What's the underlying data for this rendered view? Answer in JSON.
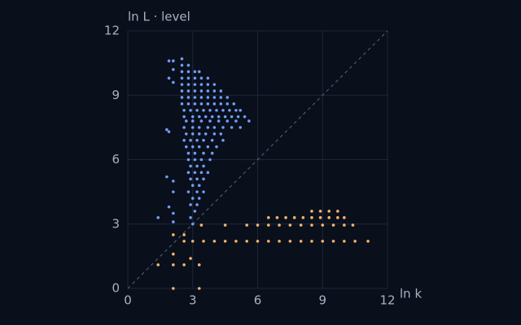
{
  "chart_data": {
    "type": "scatter",
    "x_label": "ln k",
    "y_label": "ln L · level",
    "xlim": [
      0,
      12
    ],
    "ylim": [
      0,
      12
    ],
    "xticks": [
      0,
      3,
      6,
      9,
      12
    ],
    "yticks": [
      0,
      3,
      6,
      9,
      12
    ],
    "grid": true,
    "series": [
      {
        "color": "#6f9cf4",
        "x": [
          2.5,
          2.5,
          2.8,
          2.5,
          2.8,
          3.1,
          3.3,
          2.5,
          2.8,
          3.1,
          3.4,
          3.7,
          2.5,
          2.8,
          3.1,
          3.4,
          3.7,
          4.0,
          2.5,
          2.8,
          3.1,
          3.4,
          3.7,
          4.0,
          4.3,
          2.5,
          2.8,
          3.1,
          3.4,
          3.7,
          4.0,
          4.3,
          4.6,
          2.5,
          2.8,
          3.1,
          3.4,
          3.7,
          4.0,
          4.3,
          4.6,
          4.9,
          2.6,
          2.9,
          3.2,
          3.5,
          3.8,
          4.1,
          4.4,
          4.7,
          5.0,
          5.2,
          2.6,
          3.0,
          3.3,
          3.6,
          3.9,
          4.2,
          4.5,
          4.8,
          5.1,
          5.4,
          2.7,
          3.0,
          3.4,
          3.8,
          4.2,
          4.6,
          5.0,
          5.6,
          2.6,
          3.0,
          3.3,
          3.7,
          4.0,
          4.4,
          4.8,
          5.2,
          2.7,
          3.0,
          3.3,
          3.6,
          4.0,
          4.3,
          2.6,
          2.9,
          3.2,
          3.5,
          3.9,
          4.4,
          2.7,
          3.0,
          3.3,
          3.7,
          4.1,
          2.8,
          3.1,
          3.5,
          3.9,
          2.8,
          3.1,
          3.4,
          3.8,
          2.9,
          3.2,
          3.5,
          2.8,
          3.1,
          3.4,
          3.7,
          2.9,
          3.2,
          3.5,
          3.0,
          3.3,
          2.8,
          3.2,
          3.5,
          3.0,
          3.3,
          2.9,
          3.2,
          3.1,
          2.9,
          3.0,
          2.1,
          2.1,
          2.1,
          1.9,
          1.9,
          1.8,
          1.9,
          1.8,
          2.1,
          2.1,
          1.4,
          2.1,
          1.9,
          2.1
        ],
        "values": [
          10.7,
          10.4,
          10.4,
          10.1,
          10.1,
          10.1,
          10.1,
          9.8,
          9.8,
          9.8,
          9.8,
          9.8,
          9.5,
          9.5,
          9.5,
          9.5,
          9.5,
          9.5,
          9.2,
          9.2,
          9.2,
          9.2,
          9.2,
          9.2,
          9.2,
          8.9,
          8.9,
          8.9,
          8.9,
          8.9,
          8.9,
          8.9,
          8.9,
          8.6,
          8.6,
          8.6,
          8.6,
          8.6,
          8.6,
          8.6,
          8.6,
          8.6,
          8.3,
          8.3,
          8.3,
          8.3,
          8.3,
          8.3,
          8.3,
          8.3,
          8.3,
          8.3,
          8.0,
          8.0,
          8.0,
          8.0,
          8.0,
          8.0,
          8.0,
          8.0,
          8.0,
          8.0,
          7.8,
          7.8,
          7.8,
          7.8,
          7.8,
          7.8,
          7.8,
          7.8,
          7.5,
          7.5,
          7.5,
          7.5,
          7.5,
          7.5,
          7.5,
          7.5,
          7.2,
          7.2,
          7.2,
          7.2,
          7.2,
          7.2,
          6.9,
          6.9,
          6.9,
          6.9,
          6.9,
          6.9,
          6.6,
          6.6,
          6.6,
          6.6,
          6.6,
          6.3,
          6.3,
          6.3,
          6.3,
          6.0,
          6.0,
          6.0,
          6.0,
          5.7,
          5.7,
          5.7,
          5.4,
          5.4,
          5.4,
          5.4,
          5.1,
          5.1,
          5.1,
          4.8,
          4.8,
          4.5,
          4.5,
          4.5,
          4.2,
          4.2,
          3.9,
          3.9,
          3.6,
          3.3,
          3.0,
          10.6,
          10.2,
          9.6,
          10.6,
          9.8,
          7.4,
          7.3,
          5.2,
          5.0,
          4.5,
          3.3,
          3.5,
          3.8,
          3.1
        ]
      },
      {
        "color": "#f5b46b",
        "x": [
          2.6,
          3.0,
          3.5,
          4.0,
          4.5,
          5.0,
          5.5,
          6.0,
          6.5,
          7.0,
          7.5,
          8.0,
          8.5,
          9.0,
          9.5,
          10.0,
          10.5,
          11.1,
          3.4,
          4.5,
          5.5,
          6.0,
          6.5,
          7.0,
          7.5,
          8.0,
          8.5,
          9.0,
          9.5,
          10.0,
          10.4,
          6.5,
          6.9,
          7.3,
          7.7,
          8.1,
          8.5,
          8.9,
          9.3,
          9.7,
          10.0,
          8.5,
          8.9,
          9.3,
          9.7,
          2.1,
          3.3,
          2.1,
          2.6,
          3.3,
          1.4,
          2.1,
          2.9,
          2.1,
          2.6
        ],
        "values": [
          2.2,
          2.2,
          2.2,
          2.2,
          2.2,
          2.2,
          2.2,
          2.2,
          2.2,
          2.2,
          2.2,
          2.2,
          2.2,
          2.2,
          2.2,
          2.2,
          2.2,
          2.2,
          2.95,
          2.95,
          2.95,
          2.95,
          2.95,
          2.95,
          2.95,
          2.95,
          2.95,
          2.95,
          2.95,
          2.95,
          2.95,
          3.3,
          3.3,
          3.3,
          3.3,
          3.3,
          3.3,
          3.3,
          3.3,
          3.3,
          3.3,
          3.6,
          3.6,
          3.6,
          3.6,
          0,
          0,
          1.1,
          1.1,
          1.1,
          1.1,
          1.6,
          1.4,
          2.5,
          2.5
        ]
      }
    ]
  }
}
